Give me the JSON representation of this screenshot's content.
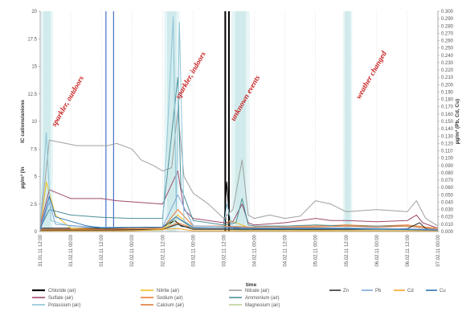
{
  "chart_data": {
    "type": "line",
    "xlabel": "time",
    "ylabel_left": "IC cations/anions",
    "ylabel_left_unit": "µg/m³ (In",
    "ylabel_right": "µg/m³ (Pb, Cd, Cu)",
    "ylim_left": [
      0,
      20
    ],
    "ylim_right": [
      0,
      0.3
    ],
    "left_ticks": [
      "0",
      "2.5",
      "5",
      "7.5",
      "10",
      "12.5",
      "15",
      "17.5",
      "20"
    ],
    "right_ticks": [
      "0.000",
      "0.010",
      "0.020",
      "0.030",
      "0.040",
      "0.050",
      "0.060",
      "0.070",
      "0.080",
      "0.090",
      "0.100",
      "0.110",
      "0.120",
      "0.130",
      "0.140",
      "0.150",
      "0.160",
      "0.170",
      "0.180",
      "0.190",
      "0.200",
      "0.210",
      "0.220",
      "0.230",
      "0.240",
      "0.250",
      "0.260",
      "0.270",
      "0.280",
      "0.290",
      "0.300"
    ],
    "x_ticks": [
      "31.01.11 12:00",
      "01.02.11 00:00",
      "01.02.11 12:00",
      "02.02.11 00:00",
      "02.02.11 12:00",
      "03.02.11 00:00",
      "03.02.11 12:00",
      "04.02.11 00:00",
      "04.02.11 12:00",
      "05.02.11 00:00",
      "05.02.11 12:00",
      "06.02.11 00:00",
      "06.02.11 12:00",
      "07.02.11 00:00"
    ],
    "x_range": [
      0,
      13
    ],
    "annotations": [
      {
        "text": "sparkler, outdoors",
        "x": 0.5,
        "y": 9.5
      },
      {
        "text": "sparkler, indoors",
        "x": 4.55,
        "y": 12
      },
      {
        "text": "unknown events",
        "x": 6.35,
        "y": 10
      },
      {
        "text": "weather changed",
        "x": 10.45,
        "y": 12
      }
    ],
    "shaded_bands": [
      [
        0.02,
        0.42
      ],
      [
        4.05,
        4.55
      ],
      [
        6.25,
        6.85
      ],
      [
        9.9,
        10.2
      ]
    ],
    "vertical_lines": [
      {
        "x": 6.05,
        "color": "#000000"
      },
      {
        "x": 6.17,
        "color": "#000000"
      },
      {
        "x": 2.15,
        "color": "#4472c4"
      },
      {
        "x": 2.4,
        "color": "#4472c4"
      }
    ],
    "series": [
      {
        "name": "Chloride (air)",
        "axis": "left",
        "color": "#000000",
        "points": [
          [
            0,
            0.3
          ],
          [
            1,
            0.3
          ],
          [
            2,
            0.3
          ],
          [
            3,
            0.3
          ],
          [
            4,
            0.4
          ],
          [
            4.4,
            1
          ],
          [
            4.6,
            0.5
          ],
          [
            5,
            0.3
          ],
          [
            6,
            0.3
          ],
          [
            6.1,
            4.5
          ],
          [
            6.2,
            0.4
          ],
          [
            7,
            0.2
          ],
          [
            8,
            0.2
          ],
          [
            9,
            0.2
          ],
          [
            10,
            0.2
          ],
          [
            11,
            0.2
          ],
          [
            12,
            0.2
          ],
          [
            13,
            0.2
          ]
        ]
      },
      {
        "name": "Nitrite (air)",
        "axis": "left",
        "color": "#f0c020",
        "points": [
          [
            0,
            0.1
          ],
          [
            0.2,
            4.5
          ],
          [
            0.5,
            1.5
          ],
          [
            1,
            0.3
          ],
          [
            2,
            0.2
          ],
          [
            3,
            0.2
          ],
          [
            4,
            0.2
          ],
          [
            4.5,
            1.5
          ],
          [
            5,
            0.3
          ],
          [
            6,
            0.3
          ],
          [
            6.2,
            1
          ],
          [
            7,
            0.2
          ],
          [
            8,
            0.2
          ],
          [
            9,
            0.1
          ],
          [
            10,
            0.2
          ],
          [
            11,
            0.2
          ],
          [
            12,
            0.2
          ],
          [
            13,
            0.1
          ]
        ]
      },
      {
        "name": "Nitrate (air)",
        "axis": "left",
        "color": "#a0a0a0",
        "points": [
          [
            0,
            0.5
          ],
          [
            0.3,
            8.3
          ],
          [
            1.2,
            7.8
          ],
          [
            2.2,
            7.8
          ],
          [
            2.5,
            8
          ],
          [
            3,
            7.5
          ],
          [
            3.3,
            6.5
          ],
          [
            3.7,
            6
          ],
          [
            4,
            5.5
          ],
          [
            4.3,
            5.8
          ],
          [
            4.5,
            11
          ],
          [
            4.7,
            5
          ],
          [
            5,
            3.5
          ],
          [
            5.5,
            2.5
          ],
          [
            6,
            1.2
          ],
          [
            6.3,
            2
          ],
          [
            6.6,
            6.5
          ],
          [
            6.8,
            1.5
          ],
          [
            7,
            1.2
          ],
          [
            7.5,
            1.5
          ],
          [
            8,
            1.2
          ],
          [
            8.5,
            1.4
          ],
          [
            9,
            2.8
          ],
          [
            9.5,
            2.5
          ],
          [
            10,
            1.8
          ],
          [
            11,
            2
          ],
          [
            12,
            1.8
          ],
          [
            12.3,
            2.8
          ],
          [
            12.6,
            1.2
          ],
          [
            13,
            0.5
          ]
        ]
      },
      {
        "name": "Sulfate (air)",
        "axis": "left",
        "color": "#9e4a6e",
        "points": [
          [
            0,
            0.5
          ],
          [
            0.3,
            3.8
          ],
          [
            1,
            3
          ],
          [
            2,
            3
          ],
          [
            2.5,
            2.8
          ],
          [
            3,
            2.7
          ],
          [
            4,
            2.5
          ],
          [
            4.5,
            5.5
          ],
          [
            4.7,
            2
          ],
          [
            5,
            1.2
          ],
          [
            6,
            0.8
          ],
          [
            6.3,
            0.9
          ],
          [
            6.6,
            2.5
          ],
          [
            6.8,
            0.8
          ],
          [
            7,
            0.6
          ],
          [
            8,
            0.8
          ],
          [
            9,
            1.2
          ],
          [
            9.5,
            1
          ],
          [
            10,
            1
          ],
          [
            11,
            0.9
          ],
          [
            12,
            1
          ],
          [
            12.3,
            1.5
          ],
          [
            12.5,
            0.8
          ],
          [
            13,
            0.3
          ]
        ]
      },
      {
        "name": "Sodium (air)",
        "axis": "left",
        "color": "#ed7d31",
        "points": [
          [
            0,
            0.2
          ],
          [
            1,
            0.2
          ],
          [
            2,
            0.2
          ],
          [
            3,
            0.3
          ],
          [
            4,
            0.3
          ],
          [
            4.5,
            2
          ],
          [
            5,
            0.5
          ],
          [
            6,
            0.5
          ],
          [
            7,
            0.4
          ],
          [
            8,
            0.5
          ],
          [
            9,
            0.5
          ],
          [
            10,
            0.6
          ],
          [
            11,
            0.5
          ],
          [
            12,
            0.6
          ],
          [
            13,
            0.3
          ]
        ]
      },
      {
        "name": "Ammonium (air)",
        "axis": "left",
        "color": "#4d8f98",
        "points": [
          [
            0,
            0.3
          ],
          [
            0.3,
            2
          ],
          [
            1,
            1.5
          ],
          [
            2,
            1.3
          ],
          [
            3,
            1.2
          ],
          [
            4,
            1.2
          ],
          [
            4.5,
            14
          ],
          [
            4.6,
            4
          ],
          [
            5,
            1
          ],
          [
            6,
            0.6
          ],
          [
            6.4,
            0.8
          ],
          [
            6.6,
            3
          ],
          [
            6.8,
            0.6
          ],
          [
            7,
            0.5
          ],
          [
            8,
            0.5
          ],
          [
            9,
            0.6
          ],
          [
            10,
            0.5
          ],
          [
            11,
            0.5
          ],
          [
            12,
            0.5
          ],
          [
            13,
            0.2
          ]
        ]
      },
      {
        "name": "Potassium (air)",
        "axis": "left",
        "color": "#8dc4d6",
        "points": [
          [
            0,
            0.2
          ],
          [
            0.2,
            9
          ],
          [
            0.35,
            1
          ],
          [
            1,
            0.5
          ],
          [
            2,
            0.4
          ],
          [
            3,
            0.4
          ],
          [
            4,
            0.4
          ],
          [
            4.35,
            19.5
          ],
          [
            4.45,
            2
          ],
          [
            4.55,
            19
          ],
          [
            4.7,
            1
          ],
          [
            5,
            0.4
          ],
          [
            6,
            0.3
          ],
          [
            6.1,
            2.5
          ],
          [
            6.3,
            0.3
          ],
          [
            7,
            0.2
          ],
          [
            8,
            0.2
          ],
          [
            9,
            0.2
          ],
          [
            10,
            0.2
          ],
          [
            11,
            0.2
          ],
          [
            12,
            0.2
          ],
          [
            13,
            0.1
          ]
        ]
      },
      {
        "name": "Calcium (air)",
        "axis": "left",
        "color": "#e07b39",
        "points": [
          [
            0,
            0.1
          ],
          [
            1,
            0.2
          ],
          [
            2,
            0.2
          ],
          [
            3,
            0.2
          ],
          [
            4,
            0.2
          ],
          [
            4.5,
            0.8
          ],
          [
            5,
            0.3
          ],
          [
            6,
            0.3
          ],
          [
            7,
            0.3
          ],
          [
            8,
            0.4
          ],
          [
            9,
            0.4
          ],
          [
            10,
            0.5
          ],
          [
            11,
            0.4
          ],
          [
            12,
            0.5
          ],
          [
            13,
            0.2
          ]
        ]
      },
      {
        "name": "Magnesium (air)",
        "axis": "left",
        "color": "#bcd19b",
        "points": [
          [
            0,
            0.1
          ],
          [
            1,
            0.1
          ],
          [
            2,
            0.1
          ],
          [
            3,
            0.1
          ],
          [
            4,
            0.1
          ],
          [
            4.5,
            1.2
          ],
          [
            5,
            0.2
          ],
          [
            6,
            0.2
          ],
          [
            7,
            0.1
          ],
          [
            8,
            0.1
          ],
          [
            9,
            0.1
          ],
          [
            10,
            0.1
          ],
          [
            11,
            0.1
          ],
          [
            12,
            0.1
          ],
          [
            13,
            0.1
          ]
        ]
      },
      {
        "name": "Zn",
        "axis": "right",
        "color": "#333333",
        "points": [
          [
            0,
            0.002
          ],
          [
            2,
            0.002
          ],
          [
            4,
            0.003
          ],
          [
            4.5,
            0.01
          ],
          [
            5,
            0.003
          ],
          [
            8,
            0.003
          ],
          [
            10,
            0.003
          ],
          [
            12,
            0.004
          ],
          [
            12.4,
            0.012
          ],
          [
            12.6,
            0.004
          ],
          [
            13,
            0.002
          ]
        ]
      },
      {
        "name": "Pb",
        "axis": "right",
        "color": "#7fa7d8",
        "points": [
          [
            0,
            0.001
          ],
          [
            0.3,
            0.04
          ],
          [
            0.5,
            0.01
          ],
          [
            2,
            0.005
          ],
          [
            4,
            0.006
          ],
          [
            4.5,
            0.05
          ],
          [
            5,
            0.008
          ],
          [
            7,
            0.005
          ],
          [
            10,
            0.005
          ],
          [
            13,
            0.003
          ]
        ]
      },
      {
        "name": "Cd",
        "axis": "right",
        "color": "#f5a623",
        "points": [
          [
            0,
            0.001
          ],
          [
            3,
            0.001
          ],
          [
            4.5,
            0.004
          ],
          [
            5,
            0.001
          ],
          [
            13,
            0.001
          ]
        ]
      },
      {
        "name": "Cu",
        "axis": "right",
        "color": "#2e75b6",
        "points": [
          [
            0,
            0.002
          ],
          [
            0.3,
            0.048
          ],
          [
            0.5,
            0.02
          ],
          [
            1.5,
            0.008
          ],
          [
            2,
            0.005
          ],
          [
            4,
            0.006
          ],
          [
            4.45,
            0.02
          ],
          [
            5,
            0.005
          ],
          [
            7,
            0.004
          ],
          [
            10,
            0.004
          ],
          [
            13,
            0.002
          ]
        ]
      }
    ]
  }
}
